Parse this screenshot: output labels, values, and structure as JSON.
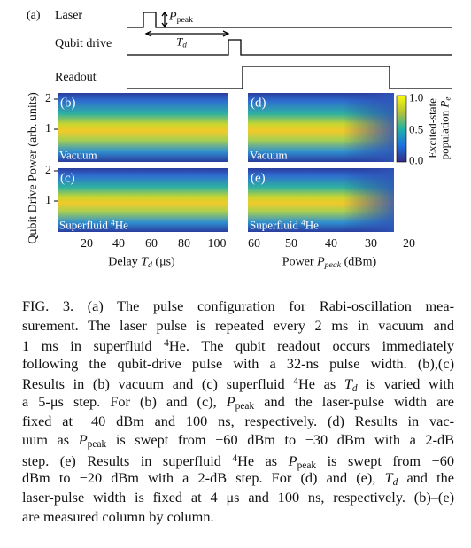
{
  "figure": {
    "panel_a": {
      "label": "(a)",
      "rows": [
        "Laser",
        "Qubit drive",
        "Readout"
      ],
      "peak_label": [
        {
          "text": "P",
          "italic": true
        },
        {
          "text": "peak",
          "sub": true
        }
      ],
      "delay_label": [
        {
          "text": "T",
          "italic": true
        },
        {
          "text": "d",
          "sub": true,
          "italic": true
        }
      ]
    },
    "panels": [
      {
        "label": "(b)",
        "medium": "Vacuum"
      },
      {
        "label": "(c)",
        "medium": [
          {
            "text": "Superfluid "
          },
          {
            "text": "4",
            "sup": true
          },
          {
            "text": "He"
          }
        ]
      },
      {
        "label": "(d)",
        "medium": "Vacuum"
      },
      {
        "label": "(e)",
        "medium": [
          {
            "text": "Superfluid "
          },
          {
            "text": "4",
            "sup": true
          },
          {
            "text": "He"
          }
        ]
      }
    ],
    "y_label": "Qubit Drive Power (arb. units)",
    "y_ticks": [
      2,
      1
    ],
    "x_ticks_left": [
      20,
      40,
      60,
      80,
      100
    ],
    "x_ticks_right": [
      "−60",
      "−50",
      "−40",
      "−30",
      "−20"
    ],
    "x_label_left": [
      {
        "text": "Delay "
      },
      {
        "text": "T",
        "italic": true
      },
      {
        "text": "d",
        "sub": true,
        "italic": true
      },
      {
        "text": " (μs)"
      }
    ],
    "x_label_right": [
      {
        "text": "Power "
      },
      {
        "text": "P",
        "italic": true
      },
      {
        "text": "peak",
        "sub": true,
        "italic": true
      },
      {
        "text": " (dBm)"
      }
    ],
    "colorbar_ticks": [
      "1.0",
      "0.5",
      "0.0"
    ],
    "colorbar_label": [
      {
        "text": "Excited-state"
      }
    ],
    "colorbar_label2": [
      {
        "text": "population "
      },
      {
        "text": "P",
        "italic": true
      },
      {
        "text": "e",
        "sub": true,
        "italic": true
      }
    ]
  },
  "caption": {
    "lines": [
      [
        {
          "text": "FIG. 3.  (a) The pulse configuration for Rabi-oscillation mea-"
        }
      ],
      [
        {
          "text": "surement. The laser pulse is repeated every 2 ms in vacuum and"
        }
      ],
      [
        {
          "text": "1 ms in superfluid "
        },
        {
          "text": "4",
          "sup": true
        },
        {
          "text": "He. The qubit readout occurs immediately"
        }
      ],
      [
        {
          "text": "following the qubit-drive pulse with a 32-ns pulse width. (b),(c)"
        }
      ],
      [
        {
          "text": "Results in (b) vacuum and (c) superfluid "
        },
        {
          "text": "4",
          "sup": true
        },
        {
          "text": "He as "
        },
        {
          "text": "T",
          "italic": true
        },
        {
          "text": "d",
          "sub": true,
          "italic": true
        },
        {
          "text": " is varied with"
        }
      ],
      [
        {
          "text": "a 5-μs step. For (b) and (c), "
        },
        {
          "text": "P",
          "italic": true
        },
        {
          "text": "peak",
          "sub": true
        },
        {
          "text": " and the laser-pulse width are"
        }
      ],
      [
        {
          "text": "fixed at −40 dBm and 100 ns, respectively. (d) Results in vac-"
        }
      ],
      [
        {
          "text": "uum as "
        },
        {
          "text": "P",
          "italic": true
        },
        {
          "text": "peak",
          "sub": true
        },
        {
          "text": " is swept from −60 dBm to −30 dBm with a 2-dB"
        }
      ],
      [
        {
          "text": "step. (e) Results in superfluid "
        },
        {
          "text": "4",
          "sup": true
        },
        {
          "text": "He as "
        },
        {
          "text": "P",
          "italic": true
        },
        {
          "text": "peak",
          "sub": true
        },
        {
          "text": " is swept from −60"
        }
      ],
      [
        {
          "text": "dBm to −20 dBm with a 2-dB step. For (d) and (e), "
        },
        {
          "text": "T",
          "italic": true
        },
        {
          "text": "d",
          "sub": true,
          "italic": true
        },
        {
          "text": " and the"
        }
      ],
      [
        {
          "text": "laser-pulse width is fixed at 4 μs and 100 ns, respectively. (b)–(e)"
        }
      ],
      [
        {
          "text": "are measured column by column."
        }
      ]
    ]
  }
}
